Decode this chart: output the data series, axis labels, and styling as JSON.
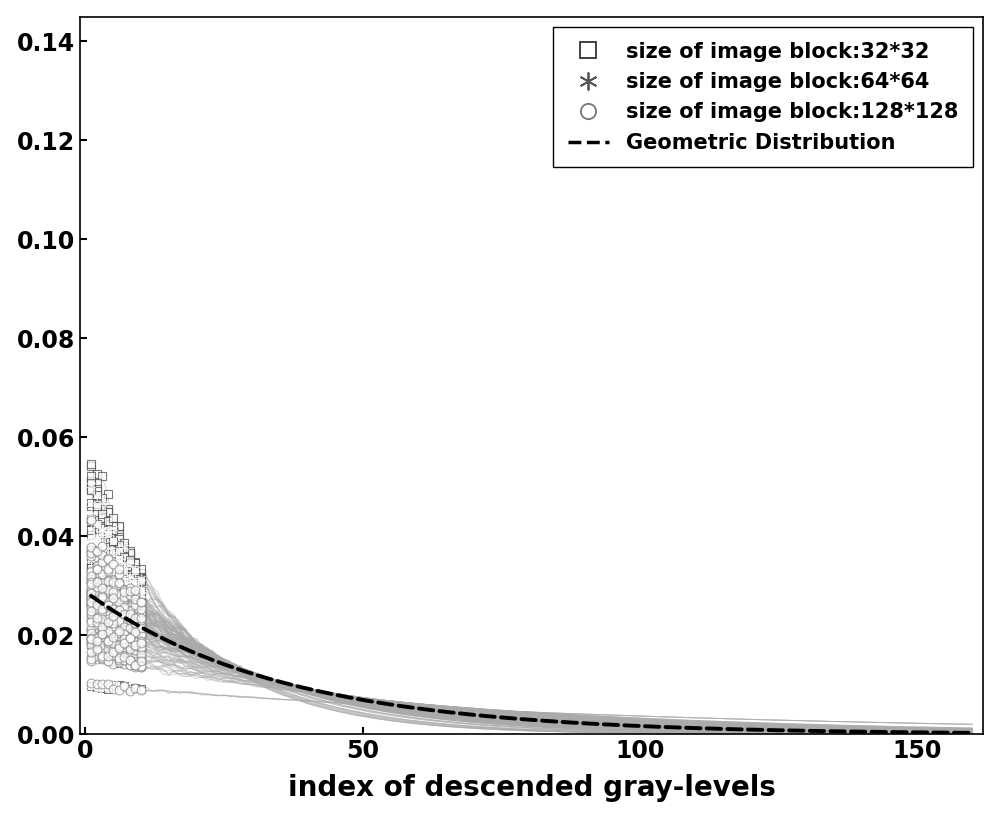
{
  "title": "",
  "xlabel": "index of descended gray-levels",
  "ylabel": "",
  "xlim": [
    -1,
    162
  ],
  "ylim": [
    0,
    0.145
  ],
  "yticks": [
    0,
    0.02,
    0.04,
    0.06,
    0.08,
    0.1,
    0.12,
    0.14
  ],
  "xticks": [
    0,
    50,
    100,
    150
  ],
  "legend_entries": [
    "size of image block:32*32",
    "size of image block:64*64",
    "size of image block:128*128",
    "Geometric Distribution"
  ],
  "geo_p": 0.028,
  "n_points": 160,
  "color_curves": "#aaaaaa",
  "color_geo": "#000000",
  "background_color": "#ffffff",
  "xlabel_fontsize": 20,
  "tick_fontsize": 17,
  "legend_fontsize": 15
}
